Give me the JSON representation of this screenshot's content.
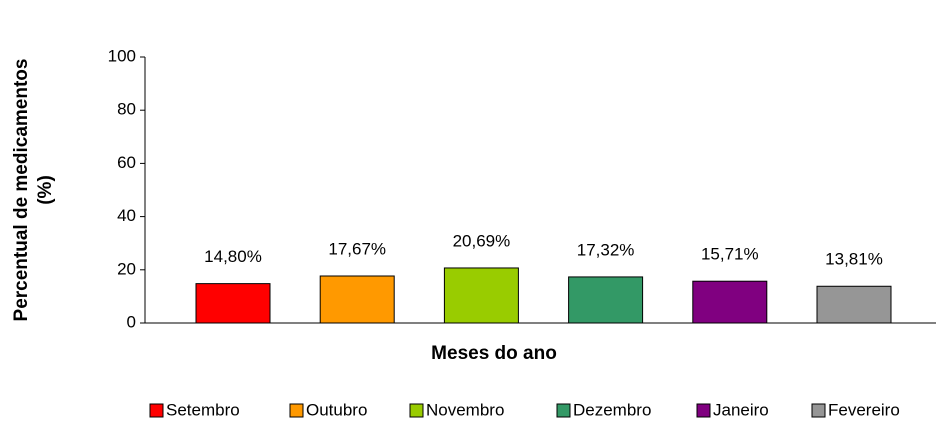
{
  "chart_data": {
    "type": "bar",
    "ylabel": [
      "Percentual de medicamentos",
      "(%)"
    ],
    "xlabel": "Meses do ano",
    "categories": [
      "Setembro",
      "Outubro",
      "Novembro",
      "Dezembro",
      "Janeiro",
      "Fevereiro"
    ],
    "values": [
      14.8,
      17.67,
      20.69,
      17.32,
      15.71,
      13.81
    ],
    "value_labels": [
      "14,80%",
      "17,67%",
      "20,69%",
      "17,32%",
      "15,71%",
      "13,81%"
    ],
    "colors": [
      "#ff0000",
      "#ff9900",
      "#99cc00",
      "#339966",
      "#800080",
      "#969696"
    ],
    "ylim": [
      0,
      100
    ],
    "yticks": [
      0,
      20,
      40,
      60,
      80,
      100
    ],
    "grid": false,
    "legend": "bottom"
  }
}
